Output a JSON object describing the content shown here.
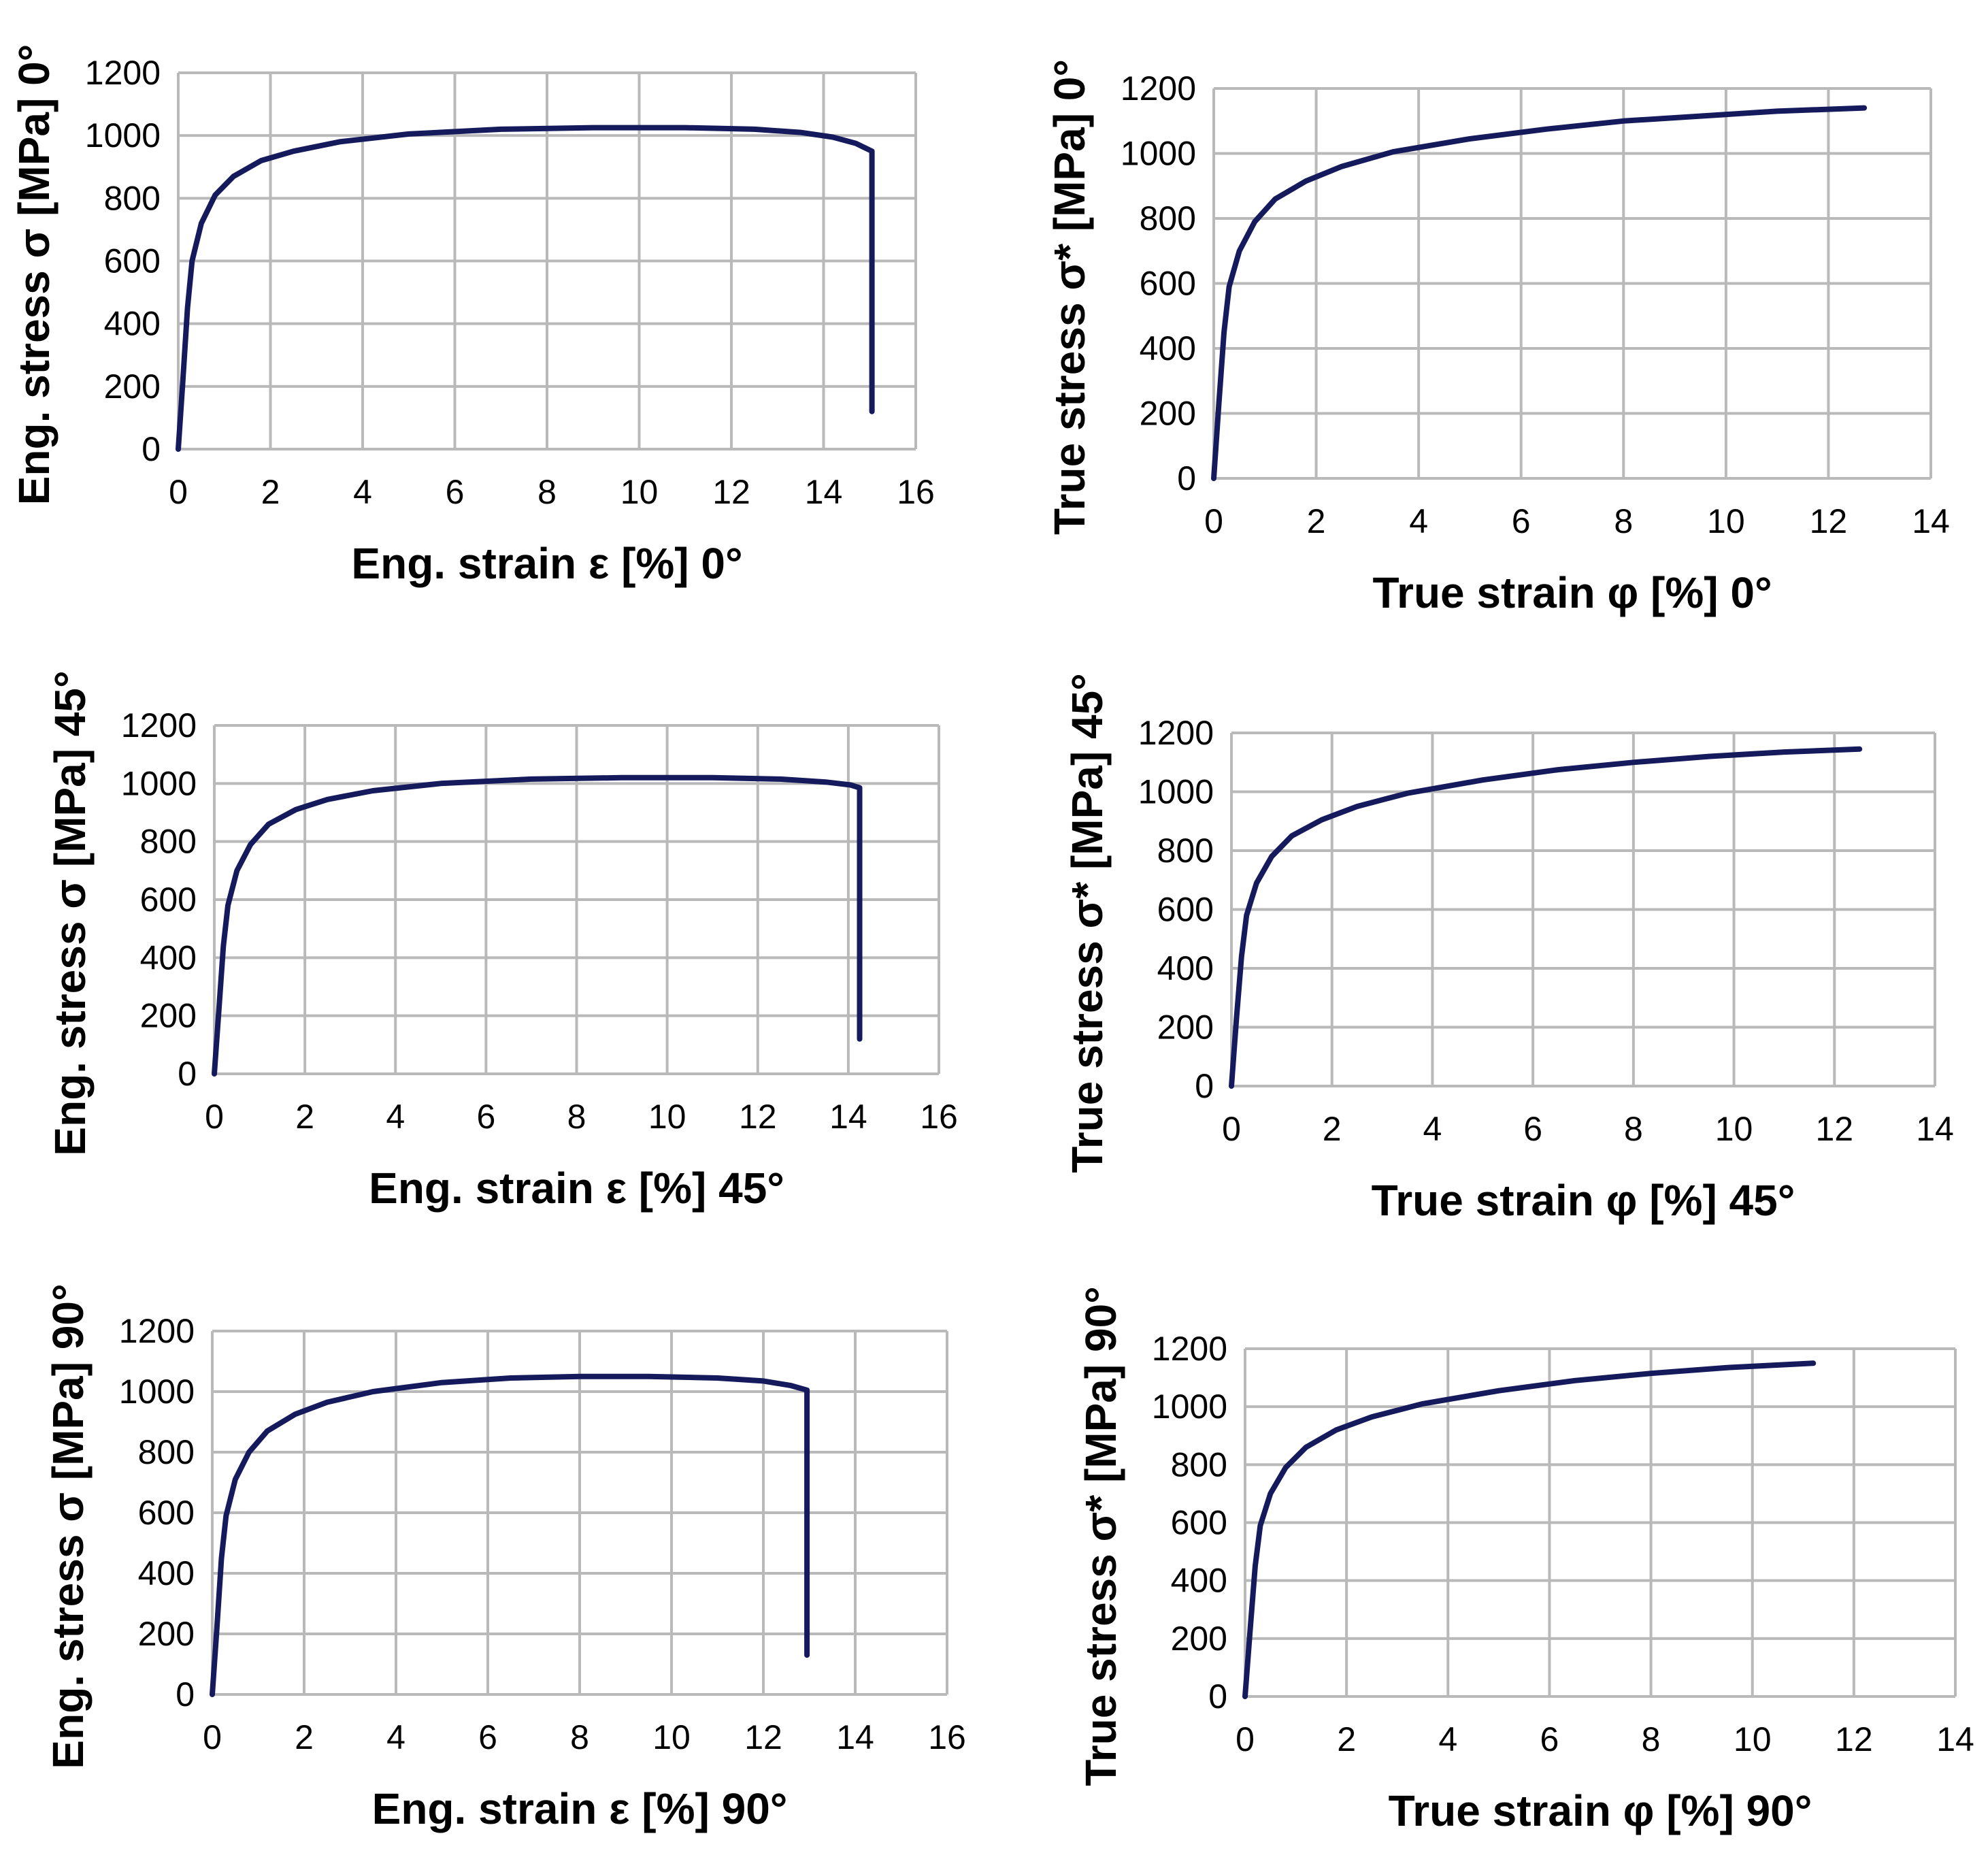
{
  "figure": {
    "curve_color": "#141a5c",
    "grid_color": "#b9b9b9"
  },
  "chart_data": [
    {
      "id": "eng-0",
      "type": "line",
      "xlabel": "Eng. strain ε [%] 0°",
      "ylabel": "Eng. stress σ  [MPa] 0°",
      "xlim": [
        0,
        16
      ],
      "ylim": [
        0,
        1200
      ],
      "xticks": [
        0,
        2,
        4,
        6,
        8,
        10,
        12,
        14,
        16
      ],
      "yticks": [
        0,
        200,
        400,
        600,
        800,
        1000,
        1200
      ],
      "series": [
        {
          "name": "0°",
          "x": [
            0,
            0.1,
            0.2,
            0.3,
            0.5,
            0.8,
            1.2,
            1.8,
            2.5,
            3.5,
            5,
            7,
            9,
            11,
            12.5,
            13.5,
            14.2,
            14.7,
            15.05,
            15.05
          ],
          "y": [
            0,
            220,
            450,
            600,
            720,
            810,
            870,
            920,
            950,
            980,
            1005,
            1020,
            1025,
            1025,
            1020,
            1010,
            995,
            975,
            950,
            120
          ]
        }
      ]
    },
    {
      "id": "true-0",
      "type": "line",
      "xlabel": "True strain φ [%] 0°",
      "ylabel": "True stress σ*  [MPa] 0°",
      "xlim": [
        0,
        14
      ],
      "ylim": [
        0,
        1200
      ],
      "xticks": [
        0,
        2,
        4,
        6,
        8,
        10,
        12,
        14
      ],
      "yticks": [
        0,
        200,
        400,
        600,
        800,
        1000,
        1200
      ],
      "series": [
        {
          "name": "0°",
          "x": [
            0,
            0.1,
            0.2,
            0.3,
            0.5,
            0.8,
            1.2,
            1.8,
            2.5,
            3.5,
            5,
            6.5,
            8,
            9.5,
            11,
            12.7
          ],
          "y": [
            0,
            230,
            450,
            590,
            700,
            790,
            860,
            915,
            960,
            1005,
            1045,
            1075,
            1100,
            1115,
            1130,
            1140
          ]
        }
      ]
    },
    {
      "id": "eng-45",
      "type": "line",
      "xlabel": "Eng. strain ε [%] 45°",
      "ylabel": "Eng. stress σ [MPa] 45°",
      "xlim": [
        0,
        16
      ],
      "ylim": [
        0,
        1200
      ],
      "xticks": [
        0,
        2,
        4,
        6,
        8,
        10,
        12,
        14,
        16
      ],
      "yticks": [
        0,
        200,
        400,
        600,
        800,
        1000,
        1200
      ],
      "series": [
        {
          "name": "45°",
          "x": [
            0,
            0.1,
            0.2,
            0.3,
            0.5,
            0.8,
            1.2,
            1.8,
            2.5,
            3.5,
            5,
            7,
            9,
            11,
            12.5,
            13.5,
            14.05,
            14.25,
            14.25
          ],
          "y": [
            0,
            220,
            440,
            580,
            700,
            790,
            860,
            910,
            945,
            975,
            1000,
            1015,
            1020,
            1020,
            1015,
            1005,
            995,
            985,
            120
          ]
        }
      ]
    },
    {
      "id": "true-45",
      "type": "line",
      "xlabel": "True strain φ [%] 45°",
      "ylabel": "True stress σ* [MPa] 45°",
      "xlim": [
        0,
        14
      ],
      "ylim": [
        0,
        1200
      ],
      "xticks": [
        0,
        2,
        4,
        6,
        8,
        10,
        12,
        14
      ],
      "yticks": [
        0,
        200,
        400,
        600,
        800,
        1000,
        1200
      ],
      "series": [
        {
          "name": "45°",
          "x": [
            0,
            0.1,
            0.2,
            0.3,
            0.5,
            0.8,
            1.2,
            1.8,
            2.5,
            3.5,
            5,
            6.5,
            8,
            9.5,
            11,
            12.5
          ],
          "y": [
            0,
            230,
            440,
            580,
            690,
            780,
            850,
            905,
            950,
            995,
            1040,
            1075,
            1100,
            1120,
            1135,
            1145
          ]
        }
      ]
    },
    {
      "id": "eng-90",
      "type": "line",
      "xlabel": "Eng. strain ε [%] 90°",
      "ylabel": "Eng. stress σ  [MPa] 90°",
      "xlim": [
        0,
        16
      ],
      "ylim": [
        0,
        1200
      ],
      "xticks": [
        0,
        2,
        4,
        6,
        8,
        10,
        12,
        14,
        16
      ],
      "yticks": [
        0,
        200,
        400,
        600,
        800,
        1000,
        1200
      ],
      "series": [
        {
          "name": "90°",
          "x": [
            0,
            0.1,
            0.2,
            0.3,
            0.5,
            0.8,
            1.2,
            1.8,
            2.5,
            3.5,
            5,
            6.5,
            8,
            9.5,
            11,
            12,
            12.6,
            12.95,
            12.95
          ],
          "y": [
            0,
            220,
            450,
            590,
            710,
            800,
            870,
            925,
            965,
            1000,
            1030,
            1045,
            1050,
            1050,
            1045,
            1035,
            1020,
            1005,
            130
          ]
        }
      ]
    },
    {
      "id": "true-90",
      "type": "line",
      "xlabel": "True strain φ [%] 90°",
      "ylabel": "True stress σ* [MPa] 90°",
      "xlim": [
        0,
        14
      ],
      "ylim": [
        0,
        1200
      ],
      "xticks": [
        0,
        2,
        4,
        6,
        8,
        10,
        12,
        14
      ],
      "yticks": [
        0,
        200,
        400,
        600,
        800,
        1000,
        1200
      ],
      "series": [
        {
          "name": "90°",
          "x": [
            0,
            0.1,
            0.2,
            0.3,
            0.5,
            0.8,
            1.2,
            1.8,
            2.5,
            3.5,
            5,
            6.5,
            8,
            9.5,
            11.2
          ],
          "y": [
            0,
            230,
            450,
            590,
            700,
            790,
            860,
            920,
            965,
            1010,
            1055,
            1090,
            1115,
            1135,
            1150
          ]
        }
      ]
    }
  ]
}
